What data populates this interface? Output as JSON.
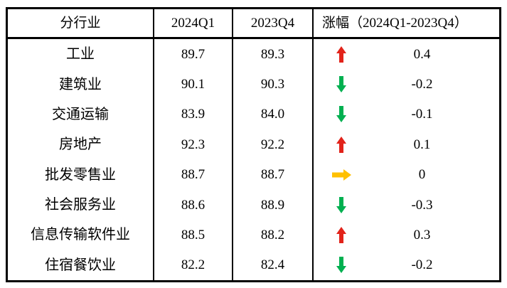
{
  "table": {
    "headers": {
      "industry": "分行业",
      "q1_2024": "2024Q1",
      "q4_2023": "2023Q4",
      "change": "涨幅（2024Q1-2023Q4）"
    },
    "rows": [
      {
        "industry": "工业",
        "q1_2024": "89.7",
        "q4_2023": "89.3",
        "trend": "up",
        "change": "0.4"
      },
      {
        "industry": "建筑业",
        "q1_2024": "90.1",
        "q4_2023": "90.3",
        "trend": "down",
        "change": "-0.2"
      },
      {
        "industry": "交通运输",
        "q1_2024": "83.9",
        "q4_2023": "84.0",
        "trend": "down",
        "change": "-0.1"
      },
      {
        "industry": "房地产",
        "q1_2024": "92.3",
        "q4_2023": "92.2",
        "trend": "up",
        "change": "0.1"
      },
      {
        "industry": "批发零售业",
        "q1_2024": "88.7",
        "q4_2023": "88.7",
        "trend": "right",
        "change": "0"
      },
      {
        "industry": "社会服务业",
        "q1_2024": "88.6",
        "q4_2023": "88.9",
        "trend": "down",
        "change": "-0.3"
      },
      {
        "industry": "信息传输软件业",
        "q1_2024": "88.5",
        "q4_2023": "88.2",
        "trend": "up",
        "change": "0.3"
      },
      {
        "industry": "住宿餐饮业",
        "q1_2024": "82.2",
        "q4_2023": "82.4",
        "trend": "down",
        "change": "-0.2"
      }
    ]
  },
  "colors": {
    "up": "#e2231a",
    "down": "#00b050",
    "right": "#ffc000",
    "border": "#000000",
    "text": "#000000"
  },
  "chart_data": {
    "type": "table",
    "title": "",
    "columns": [
      "分行业",
      "2024Q1",
      "2023Q4",
      "涨幅（2024Q1-2023Q4）"
    ],
    "rows": [
      [
        "工业",
        89.7,
        89.3,
        0.4
      ],
      [
        "建筑业",
        90.1,
        90.3,
        -0.2
      ],
      [
        "交通运输",
        83.9,
        84.0,
        -0.1
      ],
      [
        "房地产",
        92.3,
        92.2,
        0.1
      ],
      [
        "批发零售业",
        88.7,
        88.7,
        0
      ],
      [
        "社会服务业",
        88.6,
        88.9,
        -0.3
      ],
      [
        "信息传输软件业",
        88.5,
        88.2,
        0.3
      ],
      [
        "住宿餐饮业",
        82.2,
        82.4,
        -0.2
      ]
    ],
    "trend_indicators": [
      "up",
      "down",
      "down",
      "up",
      "right",
      "down",
      "up",
      "down"
    ],
    "legend_position": "none",
    "grid": "table-borders"
  }
}
